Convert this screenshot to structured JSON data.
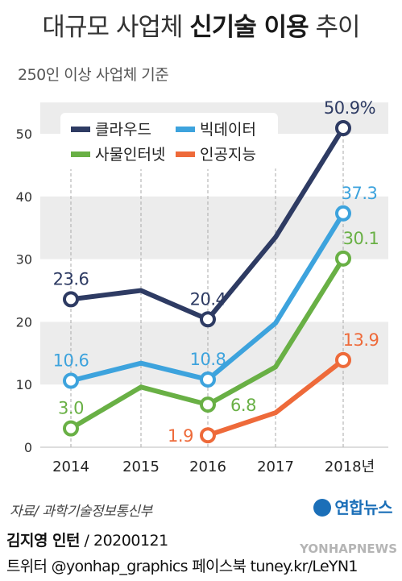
{
  "header": {
    "title_pre": "대규모 사업체 ",
    "title_bold": "신기술 이용",
    "title_post": " 추이",
    "subtitle": "250인 이상 사업체 기준"
  },
  "chart_data": {
    "type": "line",
    "categories": [
      "2014",
      "2015",
      "2016",
      "2017",
      "2018년"
    ],
    "ylim": [
      0,
      55
    ],
    "yticks": [
      0,
      10,
      20,
      30,
      40,
      50
    ],
    "grid": true,
    "unit": "%",
    "legend_position": "top-left",
    "series": [
      {
        "name": "클라우드",
        "color": "#2e3b63",
        "values": [
          23.6,
          25.0,
          20.4,
          33.5,
          50.9
        ],
        "labels": [
          "23.6",
          "",
          "20.4",
          "",
          "50.9%"
        ]
      },
      {
        "name": "빅데이터",
        "color": "#3da3dd",
        "values": [
          10.6,
          13.4,
          10.8,
          19.8,
          37.3
        ],
        "labels": [
          "10.6",
          "",
          "10.8",
          "",
          "37.3"
        ]
      },
      {
        "name": "사물인터넷",
        "color": "#69b045",
        "values": [
          3.0,
          9.6,
          6.8,
          12.8,
          30.1
        ],
        "labels": [
          "3.0",
          "",
          "6.8",
          "",
          "30.1"
        ]
      },
      {
        "name": "인공지능",
        "color": "#ee6a3a",
        "values": [
          null,
          null,
          1.9,
          5.5,
          13.9
        ],
        "labels": [
          "",
          "",
          "1.9",
          "",
          "13.9"
        ]
      }
    ]
  },
  "footer": {
    "source": "자료/ 과학기술정보통신부",
    "brand": "연합뉴스",
    "credit_name": "김지영 인턴",
    "credit_date": " / 20200121",
    "social": "트위터 @yonhap_graphics  페이스북 tuney.kr/LeYN1",
    "watermark": "YONHAPNEWS"
  }
}
